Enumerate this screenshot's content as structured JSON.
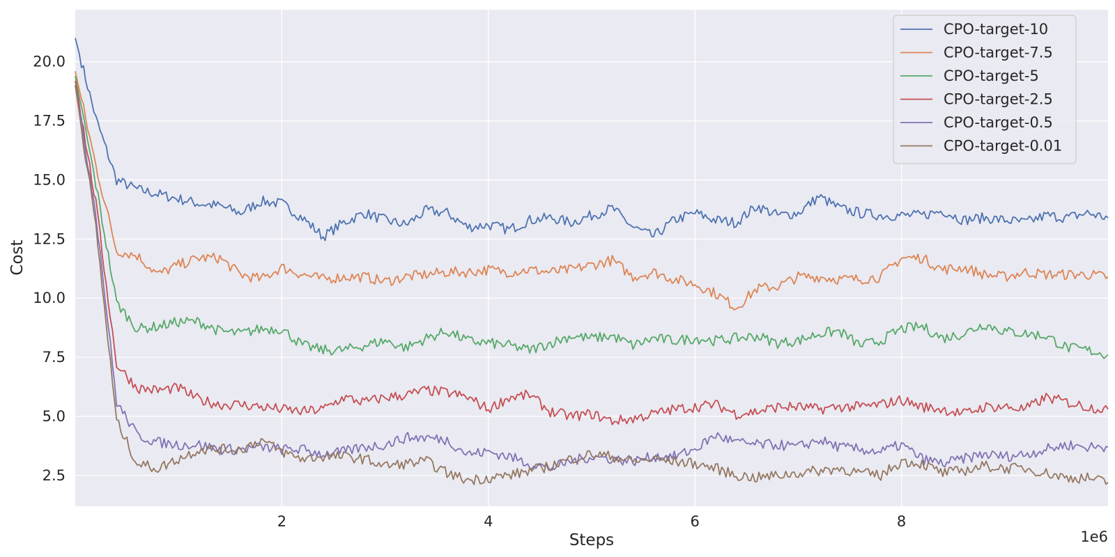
{
  "chart_data": {
    "type": "line",
    "xlabel": "Steps",
    "ylabel": "Cost",
    "x_offset_label": "1e6",
    "xlim": [
      0,
      10000000
    ],
    "ylim": [
      1.2,
      22.2
    ],
    "x_ticks": [
      2000000,
      4000000,
      6000000,
      8000000
    ],
    "x_tick_labels": [
      "2",
      "4",
      "6",
      "8"
    ],
    "y_ticks": [
      2.5,
      5.0,
      7.5,
      10.0,
      12.5,
      15.0,
      17.5,
      20.0
    ],
    "y_tick_labels": [
      "2.5",
      "5.0",
      "7.5",
      "10.0",
      "12.5",
      "15.0",
      "17.5",
      "20.0"
    ],
    "grid": true,
    "legend_position": "top-right",
    "x": [
      0,
      200000,
      400000,
      600000,
      800000,
      1000000,
      1200000,
      1400000,
      1600000,
      1800000,
      2000000,
      2200000,
      2400000,
      2600000,
      2800000,
      3000000,
      3200000,
      3400000,
      3600000,
      3800000,
      4000000,
      4200000,
      4400000,
      4600000,
      4800000,
      5000000,
      5200000,
      5400000,
      5600000,
      5800000,
      6000000,
      6200000,
      6400000,
      6600000,
      6800000,
      7000000,
      7200000,
      7400000,
      7600000,
      7800000,
      8000000,
      8200000,
      8400000,
      8600000,
      8800000,
      9000000,
      9200000,
      9400000,
      9600000,
      9800000,
      10000000
    ],
    "series": [
      {
        "name": "CPO-target-10",
        "color": "#4c72b0",
        "values": [
          21.0,
          17.6,
          15.0,
          14.6,
          14.4,
          14.2,
          14.0,
          13.9,
          13.6,
          14.1,
          14.0,
          13.4,
          12.6,
          13.2,
          13.6,
          13.3,
          13.1,
          13.7,
          13.6,
          13.0,
          13.1,
          12.9,
          13.3,
          13.4,
          13.2,
          13.5,
          13.8,
          13.0,
          12.6,
          13.3,
          13.6,
          13.3,
          13.2,
          13.9,
          13.5,
          13.6,
          14.3,
          13.8,
          13.6,
          13.5,
          13.5,
          13.5,
          13.7,
          13.3,
          13.4,
          13.3,
          13.2,
          13.5,
          13.4,
          13.6,
          13.4
        ]
      },
      {
        "name": "CPO-target-7.5",
        "color": "#dd8452",
        "values": [
          19.6,
          15.6,
          12.0,
          11.8,
          11.0,
          11.4,
          11.7,
          11.7,
          11.0,
          10.8,
          11.3,
          11.0,
          10.8,
          10.9,
          10.9,
          10.7,
          10.9,
          11.0,
          11.1,
          11.1,
          11.2,
          11.1,
          11.2,
          11.1,
          11.2,
          11.4,
          11.6,
          10.9,
          11.1,
          10.8,
          10.6,
          10.2,
          9.6,
          10.4,
          10.5,
          10.9,
          10.9,
          10.8,
          10.8,
          10.9,
          11.7,
          11.7,
          11.2,
          11.3,
          11.0,
          10.9,
          11.1,
          11.0,
          11.0,
          11.0,
          10.9
        ]
      },
      {
        "name": "CPO-target-5",
        "color": "#55a868",
        "values": [
          19.4,
          14.8,
          9.8,
          8.7,
          8.8,
          9.0,
          9.0,
          8.6,
          8.5,
          8.7,
          8.7,
          8.0,
          7.8,
          7.8,
          8.0,
          8.2,
          7.9,
          8.3,
          8.6,
          8.2,
          8.1,
          8.0,
          7.8,
          8.1,
          8.4,
          8.3,
          8.4,
          8.0,
          8.3,
          8.2,
          8.3,
          8.2,
          8.3,
          8.4,
          8.1,
          8.2,
          8.5,
          8.6,
          8.0,
          8.2,
          8.7,
          8.8,
          8.3,
          8.5,
          8.9,
          8.6,
          8.5,
          8.4,
          7.9,
          7.8,
          7.6
        ]
      },
      {
        "name": "CPO-target-2.5",
        "color": "#c44e52",
        "values": [
          19.2,
          14.0,
          7.2,
          6.2,
          6.1,
          6.2,
          5.7,
          5.5,
          5.5,
          5.4,
          5.3,
          5.2,
          5.3,
          5.8,
          5.6,
          5.8,
          5.9,
          6.1,
          6.0,
          5.8,
          5.3,
          5.8,
          5.9,
          5.2,
          5.0,
          5.1,
          4.8,
          4.9,
          5.1,
          5.3,
          5.4,
          5.5,
          5.1,
          5.2,
          5.4,
          5.4,
          5.3,
          5.4,
          5.4,
          5.5,
          5.7,
          5.4,
          5.3,
          5.1,
          5.4,
          5.4,
          5.3,
          5.8,
          5.6,
          5.4,
          5.3
        ]
      },
      {
        "name": "CPO-target-0.5",
        "color": "#8172b3",
        "values": [
          19.0,
          13.6,
          5.6,
          4.2,
          3.9,
          3.8,
          3.8,
          3.6,
          3.6,
          3.7,
          3.6,
          3.6,
          3.4,
          3.5,
          3.7,
          3.8,
          4.1,
          4.1,
          4.0,
          3.4,
          3.5,
          3.3,
          3.0,
          2.8,
          3.1,
          3.3,
          3.2,
          3.1,
          3.3,
          3.3,
          3.6,
          4.2,
          3.9,
          3.8,
          3.8,
          3.7,
          4.0,
          3.7,
          3.6,
          3.5,
          3.8,
          3.2,
          3.0,
          3.2,
          3.4,
          3.3,
          3.4,
          3.6,
          3.8,
          3.7,
          3.7
        ]
      },
      {
        "name": "CPO-target-0.01",
        "color": "#937860",
        "values": [
          19.0,
          13.0,
          4.8,
          3.0,
          2.8,
          3.2,
          3.6,
          3.6,
          3.6,
          4.0,
          3.5,
          3.2,
          3.3,
          3.3,
          3.2,
          2.9,
          3.0,
          3.1,
          2.6,
          2.3,
          2.4,
          2.5,
          2.7,
          2.9,
          3.2,
          3.4,
          3.3,
          3.1,
          3.2,
          3.1,
          3.0,
          2.8,
          2.5,
          2.4,
          2.5,
          2.6,
          2.7,
          2.8,
          2.6,
          2.5,
          3.1,
          3.0,
          2.6,
          2.7,
          2.9,
          2.8,
          2.8,
          2.6,
          2.4,
          2.4,
          2.2
        ]
      }
    ]
  }
}
